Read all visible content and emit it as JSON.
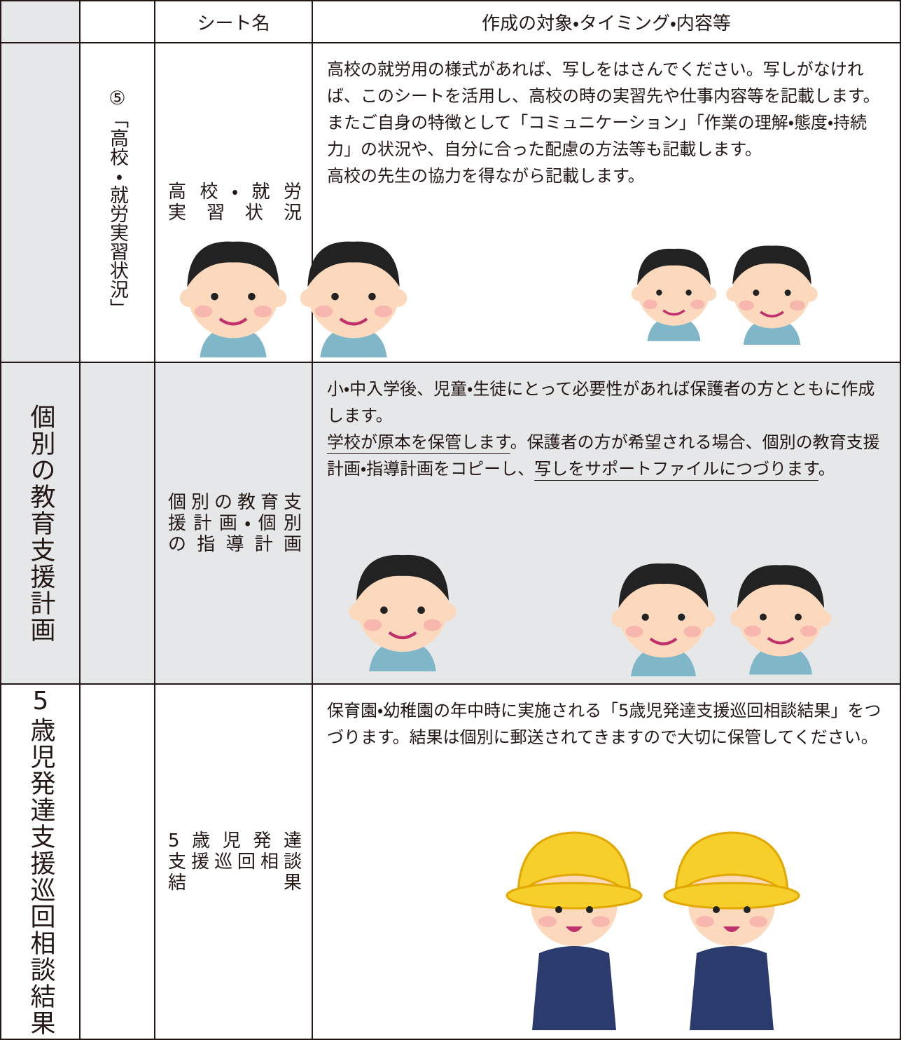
{
  "table": {
    "header": [
      "シート名",
      "作成の対象・タイミング・内容等"
    ],
    "rows": [
      {
        "section": null,
        "sub": "⑤「高校・就労実習状況」",
        "sheet_lines": [
          "高校・就労",
          "実習状況"
        ],
        "paragraphs": [
          [
            {
              "text": "高校の就労用の様式があれば、写しをはさんでください。写しがなければ、このシートを活用し、高校の時の実習先や仕事内容等を記載します。またご自身の特徴として「コミュニケーション」「作業の理解・態度・持続力」の状況や、自分に合った配慮の方法等も記載します。"
            }
          ],
          [
            {
              "text": "高校の先生の協力を得ながら記載します。"
            }
          ]
        ]
      },
      {
        "section": "個別の教育支援計画",
        "sub": null,
        "sheet_lines": [
          "個別の教育支",
          "援計画・個別",
          "の指導計画"
        ],
        "paragraphs": [
          [
            {
              "text": "小・中入学後、児童・生徒にとって必要性があれば保護者の方とともに作成します。"
            }
          ],
          [
            {
              "text": "学校が原本を保管します",
              "underline": true
            },
            {
              "text": "。保護者の方が希望される場合、個別の教育支援計画・指導計画をコピーし、"
            },
            {
              "text": "写しをサポートファイルにつづります",
              "underline": true
            },
            {
              "text": "。"
            }
          ]
        ]
      },
      {
        "section": "5歳児発達支援巡回相談結果",
        "sub": null,
        "sheet_lines": [
          "5歳児発達",
          "支援巡回相談",
          "結果"
        ],
        "paragraphs": [
          [
            {
              "text": "保育園・幼稚園の年中時に実施される「5歳児発達支援巡回相談結果」をつづります。結果は個別に郵送されてきますので大切に保管してください。"
            }
          ]
        ]
      }
    ]
  }
}
